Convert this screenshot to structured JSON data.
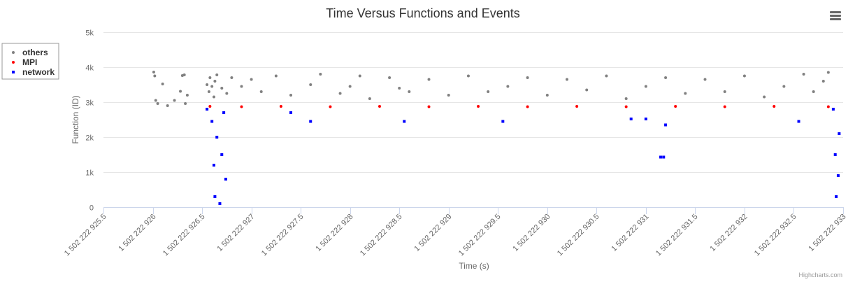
{
  "menu": {
    "icon": "hamburger-menu-icon"
  },
  "credit": "Highcharts.com",
  "chart_data": {
    "type": "scatter",
    "title": "Time Versus Functions and Events",
    "xlabel": "Time (s)",
    "ylabel": "Function (ID)",
    "xlim": [
      1502222925.5,
      1502222933.0
    ],
    "ylim": [
      0,
      5000
    ],
    "y_ticks": [
      0,
      1000,
      2000,
      3000,
      4000,
      5000
    ],
    "y_tick_labels": [
      "0",
      "1k",
      "2k",
      "3k",
      "4k",
      "5k"
    ],
    "x_ticks": [
      1502222925.5,
      1502222926,
      1502222926.5,
      1502222927,
      1502222927.5,
      1502222928,
      1502222928.5,
      1502222929,
      1502222929.5,
      1502222930,
      1502222930.5,
      1502222931,
      1502222931.5,
      1502222932,
      1502222932.5,
      1502222933
    ],
    "x_tick_labels": [
      "1 502 222 925.5",
      "1 502 222 926",
      "1 502 222 926.5",
      "1 502 222 927",
      "1 502 222 927.5",
      "1 502 222 928",
      "1 502 222 928.5",
      "1 502 222 929",
      "1 502 222 929.5",
      "1 502 222 930",
      "1 502 222 930.5",
      "1 502 222 931",
      "1 502 222 931.5",
      "1 502 222 932",
      "1 502 222 932.5",
      "1 502 222 933"
    ],
    "grid": true,
    "legend_position": "left",
    "series": [
      {
        "name": "others",
        "color": "#808080",
        "marker": "circle",
        "points": [
          [
            1502222926.01,
            3860
          ],
          [
            1502222926.02,
            3750
          ],
          [
            1502222926.03,
            3050
          ],
          [
            1502222926.05,
            2960
          ],
          [
            1502222926.1,
            3520
          ],
          [
            1502222926.15,
            2900
          ],
          [
            1502222926.22,
            3050
          ],
          [
            1502222926.28,
            3310
          ],
          [
            1502222926.3,
            3760
          ],
          [
            1502222926.32,
            3780
          ],
          [
            1502222926.33,
            2960
          ],
          [
            1502222926.35,
            3200
          ],
          [
            1502222926.55,
            3500
          ],
          [
            1502222926.57,
            3300
          ],
          [
            1502222926.58,
            3700
          ],
          [
            1502222926.6,
            3450
          ],
          [
            1502222926.62,
            3150
          ],
          [
            1502222926.63,
            3600
          ],
          [
            1502222926.65,
            3780
          ],
          [
            1502222926.7,
            3400
          ],
          [
            1502222926.75,
            3250
          ],
          [
            1502222926.8,
            3700
          ],
          [
            1502222926.9,
            3450
          ],
          [
            1502222927.0,
            3650
          ],
          [
            1502222927.1,
            3300
          ],
          [
            1502222927.25,
            3750
          ],
          [
            1502222927.4,
            3200
          ],
          [
            1502222927.6,
            3500
          ],
          [
            1502222927.7,
            3800
          ],
          [
            1502222927.9,
            3250
          ],
          [
            1502222928.0,
            3450
          ],
          [
            1502222928.1,
            3750
          ],
          [
            1502222928.2,
            3100
          ],
          [
            1502222928.4,
            3700
          ],
          [
            1502222928.5,
            3400
          ],
          [
            1502222928.6,
            3300
          ],
          [
            1502222928.8,
            3650
          ],
          [
            1502222929.0,
            3200
          ],
          [
            1502222929.2,
            3750
          ],
          [
            1502222929.4,
            3300
          ],
          [
            1502222929.6,
            3450
          ],
          [
            1502222929.8,
            3700
          ],
          [
            1502222930.0,
            3200
          ],
          [
            1502222930.2,
            3650
          ],
          [
            1502222930.4,
            3350
          ],
          [
            1502222930.6,
            3750
          ],
          [
            1502222930.8,
            3100
          ],
          [
            1502222931.0,
            3450
          ],
          [
            1502222931.2,
            3700
          ],
          [
            1502222931.4,
            3250
          ],
          [
            1502222931.6,
            3650
          ],
          [
            1502222931.8,
            3300
          ],
          [
            1502222932.0,
            3750
          ],
          [
            1502222932.2,
            3150
          ],
          [
            1502222932.4,
            3450
          ],
          [
            1502222932.6,
            3800
          ],
          [
            1502222932.7,
            3300
          ],
          [
            1502222932.8,
            3600
          ],
          [
            1502222932.85,
            3850
          ]
        ]
      },
      {
        "name": "MPI",
        "color": "#ff0000",
        "marker": "circle",
        "points": [
          [
            1502222926.58,
            2880
          ],
          [
            1502222926.9,
            2870
          ],
          [
            1502222927.3,
            2880
          ],
          [
            1502222927.8,
            2870
          ],
          [
            1502222928.3,
            2880
          ],
          [
            1502222928.8,
            2870
          ],
          [
            1502222929.3,
            2880
          ],
          [
            1502222929.8,
            2870
          ],
          [
            1502222930.3,
            2880
          ],
          [
            1502222930.8,
            2870
          ],
          [
            1502222931.3,
            2880
          ],
          [
            1502222931.8,
            2870
          ],
          [
            1502222932.3,
            2880
          ],
          [
            1502222932.85,
            2870
          ]
        ]
      },
      {
        "name": "network",
        "color": "#0000ff",
        "marker": "square",
        "points": [
          [
            1502222926.55,
            2800
          ],
          [
            1502222926.6,
            2450
          ],
          [
            1502222926.62,
            1200
          ],
          [
            1502222926.63,
            300
          ],
          [
            1502222926.65,
            2000
          ],
          [
            1502222926.68,
            100
          ],
          [
            1502222926.7,
            1500
          ],
          [
            1502222926.72,
            2700
          ],
          [
            1502222926.74,
            800
          ],
          [
            1502222927.4,
            2700
          ],
          [
            1502222927.6,
            2450
          ],
          [
            1502222928.55,
            2450
          ],
          [
            1502222929.55,
            2450
          ],
          [
            1502222930.85,
            2520
          ],
          [
            1502222931.0,
            2520
          ],
          [
            1502222931.15,
            1430
          ],
          [
            1502222931.18,
            1430
          ],
          [
            1502222931.2,
            2350
          ],
          [
            1502222932.55,
            2450
          ],
          [
            1502222932.9,
            2800
          ],
          [
            1502222932.92,
            1500
          ],
          [
            1502222932.93,
            300
          ],
          [
            1502222932.95,
            900
          ],
          [
            1502222932.96,
            2100
          ]
        ]
      }
    ]
  }
}
